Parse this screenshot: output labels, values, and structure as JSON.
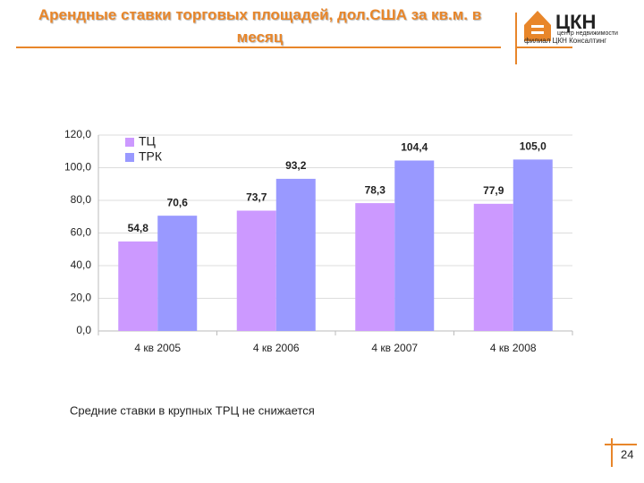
{
  "chart_data": {
    "type": "bar",
    "title": "Арендные ставки торговых площадей, дол.США за кв.м. в месяц",
    "logo": {
      "name": "ЦКН",
      "tagline": "центр недвижимости",
      "subtitle": "филиал ЦКН Консалтинг"
    },
    "categories": [
      "4 кв 2005",
      "4 кв 2006",
      "4 кв 2007",
      "4 кв 2008"
    ],
    "series": [
      {
        "name": "ТЦ",
        "color": "#cc99ff",
        "label_color": "#7a1f55",
        "values": [
          54.8,
          73.7,
          78.3,
          77.9
        ],
        "value_labels": [
          "54,8",
          "73,7",
          "78,3",
          "77,9"
        ]
      },
      {
        "name": "ТРК",
        "color": "#9999ff",
        "label_color": "#1f2a5a",
        "values": [
          70.6,
          93.2,
          104.4,
          105.0
        ],
        "value_labels": [
          "70,6",
          "93,2",
          "104,4",
          "105,0"
        ]
      }
    ],
    "ylim": [
      0,
      120
    ],
    "yticks": [
      {
        "value": 0,
        "label": "0,0"
      },
      {
        "value": 20,
        "label": "20,0"
      },
      {
        "value": 40,
        "label": "40,0"
      },
      {
        "value": 60,
        "label": "60,0"
      },
      {
        "value": 80,
        "label": "80,0"
      },
      {
        "value": 100,
        "label": "100,0"
      },
      {
        "value": 120,
        "label": "120,0"
      }
    ],
    "grid": true,
    "legend": "upper left",
    "caption": "Средние ставки в крупных ТРЦ не снижается",
    "page_number": "24"
  }
}
